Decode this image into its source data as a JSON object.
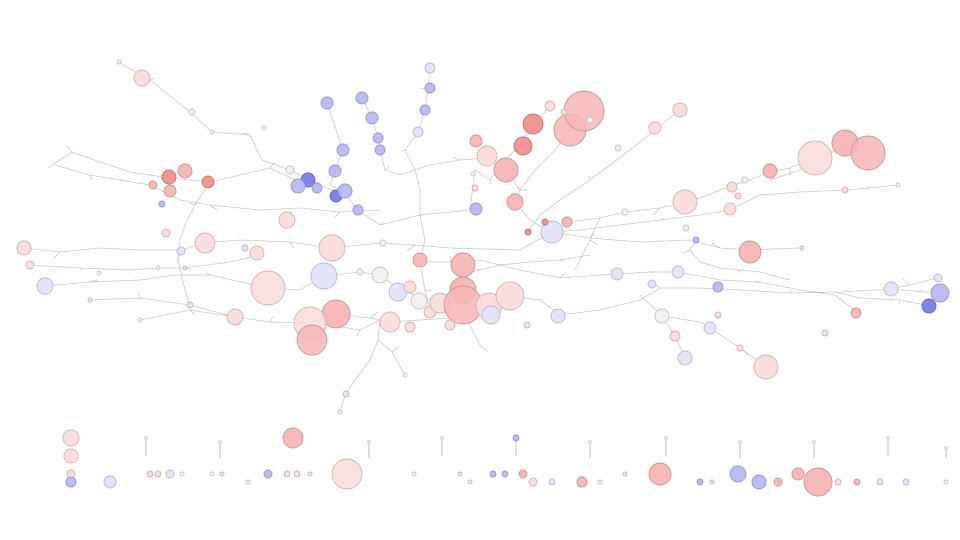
{
  "colors": {
    "background": "#ffffff",
    "edge": "#9a9a9a",
    "blue_strong": "#7b7be8",
    "blue_mid": "#b9b9f2",
    "blue_light": "#e3e3fb",
    "red_strong": "#f08f8f",
    "red_mid": "#f6b6b6",
    "red_light": "#fbdcdc",
    "neutral": "#f4f0f0"
  },
  "legend": {
    "present": false
  },
  "visual": {
    "type": "force-directed network graph with color-coded circular nodes of varying size plus a row of isolated nodes",
    "color_scale": [
      "blue_strong",
      "blue_mid",
      "blue_light",
      "neutral",
      "red_light",
      "red_mid",
      "red_strong"
    ]
  }
}
